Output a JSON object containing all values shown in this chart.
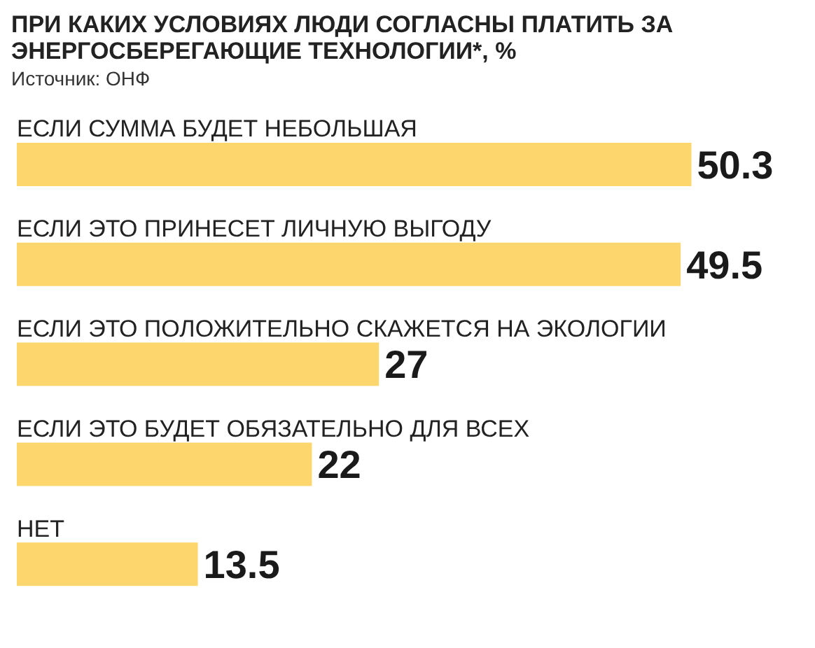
{
  "chart_data": {
    "type": "bar",
    "orientation": "horizontal",
    "title": "ПРИ КАКИХ УСЛОВИЯХ ЛЮДИ СОГЛАСНЫ ПЛАТИТЬ ЗА ЭНЕРГОСБЕРЕГАЮЩИЕ ТЕХНОЛОГИИ*, %",
    "subtitle": "Источник: ОНФ",
    "categories": [
      "ЕСЛИ СУММА БУДЕТ НЕБОЛЬШАЯ",
      "ЕСЛИ ЭТО ПРИНЕСЕТ ЛИЧНУЮ ВЫГОДУ",
      "ЕСЛИ ЭТО ПОЛОЖИТЕЛЬНО СКАЖЕТСЯ НА ЭКОЛОГИИ",
      "ЕСЛИ ЭТО БУДЕТ ОБЯЗАТЕЛЬНО ДЛЯ ВСЕХ",
      "НЕТ"
    ],
    "values": [
      50.3,
      49.5,
      27,
      22,
      13.5
    ],
    "color": "#fdd66e",
    "data_labels": true
  }
}
